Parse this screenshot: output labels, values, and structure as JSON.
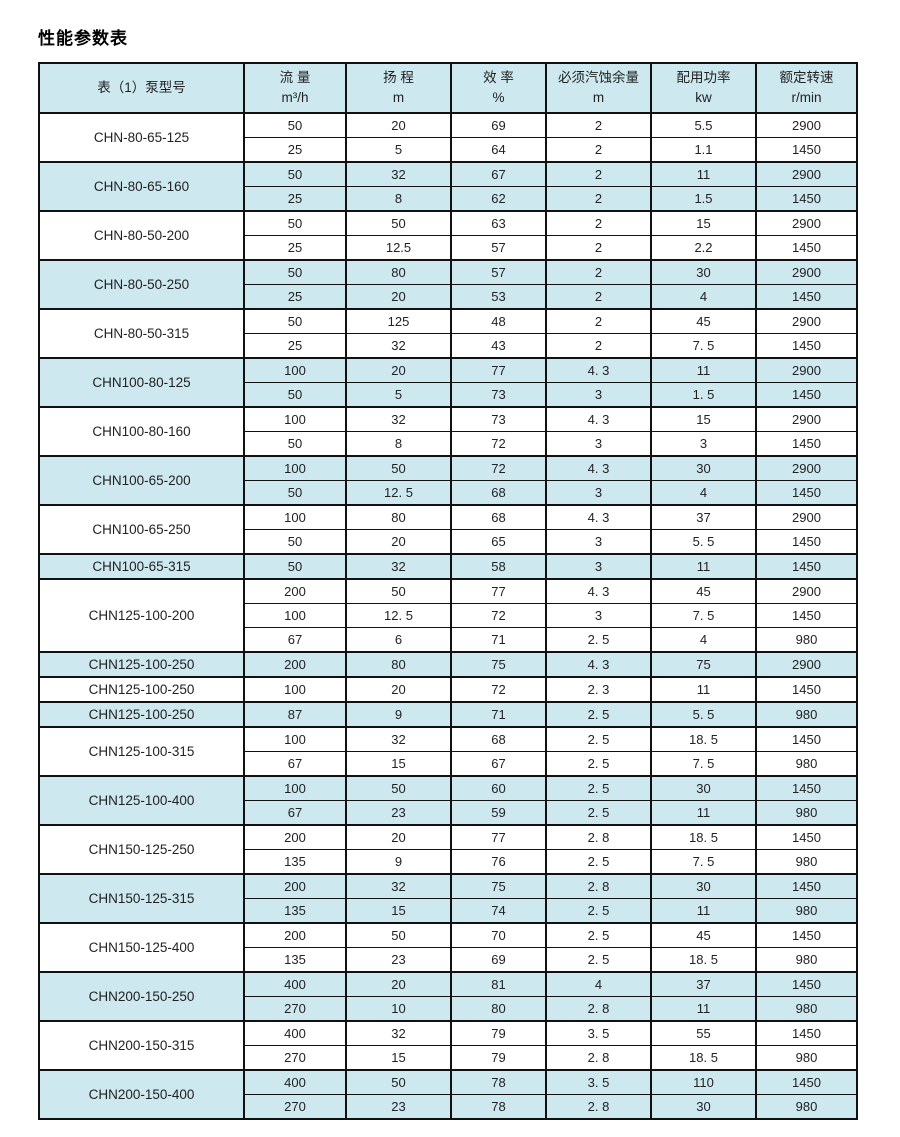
{
  "page": {
    "title": "性能参数表"
  },
  "colors": {
    "shaded_row_bg": "#cde8ef",
    "header_bg": "#cde8ef",
    "border": "#111111",
    "text": "#222222"
  },
  "table": {
    "headers": [
      {
        "line1": "表（1）泵型号",
        "line2": ""
      },
      {
        "line1": "流 量",
        "line2": "m³/h"
      },
      {
        "line1": "扬 程",
        "line2": "m"
      },
      {
        "line1": "效 率",
        "line2": "%"
      },
      {
        "line1": "必须汽蚀余量",
        "line2": "m"
      },
      {
        "line1": "配用功率",
        "line2": "kw"
      },
      {
        "line1": "额定转速",
        "line2": "r/min"
      }
    ],
    "groups": [
      {
        "model": "CHN-80-65-125",
        "shaded": false,
        "rows": [
          [
            "50",
            "20",
            "69",
            "2",
            "5.5",
            "2900"
          ],
          [
            "25",
            "5",
            "64",
            "2",
            "1.1",
            "1450"
          ]
        ]
      },
      {
        "model": "CHN-80-65-160",
        "shaded": true,
        "rows": [
          [
            "50",
            "32",
            "67",
            "2",
            "11",
            "2900"
          ],
          [
            "25",
            "8",
            "62",
            "2",
            "1.5",
            "1450"
          ]
        ]
      },
      {
        "model": "CHN-80-50-200",
        "shaded": false,
        "rows": [
          [
            "50",
            "50",
            "63",
            "2",
            "15",
            "2900"
          ],
          [
            "25",
            "12.5",
            "57",
            "2",
            "2.2",
            "1450"
          ]
        ]
      },
      {
        "model": "CHN-80-50-250",
        "shaded": true,
        "rows": [
          [
            "50",
            "80",
            "57",
            "2",
            "30",
            "2900"
          ],
          [
            "25",
            "20",
            "53",
            "2",
            "4",
            "1450"
          ]
        ]
      },
      {
        "model": "CHN-80-50-315",
        "shaded": false,
        "rows": [
          [
            "50",
            "125",
            "48",
            "2",
            "45",
            "2900"
          ],
          [
            "25",
            "32",
            "43",
            "2",
            "7. 5",
            "1450"
          ]
        ]
      },
      {
        "model": "CHN100-80-125",
        "shaded": true,
        "rows": [
          [
            "100",
            "20",
            "77",
            "4. 3",
            "11",
            "2900"
          ],
          [
            "50",
            "5",
            "73",
            "3",
            "1. 5",
            "1450"
          ]
        ]
      },
      {
        "model": "CHN100-80-160",
        "shaded": false,
        "rows": [
          [
            "100",
            "32",
            "73",
            "4. 3",
            "15",
            "2900"
          ],
          [
            "50",
            "8",
            "72",
            "3",
            "3",
            "1450"
          ]
        ]
      },
      {
        "model": "CHN100-65-200",
        "shaded": true,
        "rows": [
          [
            "100",
            "50",
            "72",
            "4. 3",
            "30",
            "2900"
          ],
          [
            "50",
            "12. 5",
            "68",
            "3",
            "4",
            "1450"
          ]
        ]
      },
      {
        "model": "CHN100-65-250",
        "shaded": false,
        "rows": [
          [
            "100",
            "80",
            "68",
            "4. 3",
            "37",
            "2900"
          ],
          [
            "50",
            "20",
            "65",
            "3",
            "5. 5",
            "1450"
          ]
        ]
      },
      {
        "model": "CHN100-65-315",
        "shaded": true,
        "rows": [
          [
            "50",
            "32",
            "58",
            "3",
            "11",
            "1450"
          ]
        ]
      },
      {
        "model": "CHN125-100-200",
        "shaded": false,
        "rows": [
          [
            "200",
            "50",
            "77",
            "4. 3",
            "45",
            "2900"
          ],
          [
            "100",
            "12. 5",
            "72",
            "3",
            "7. 5",
            "1450"
          ],
          [
            "67",
            "6",
            "71",
            "2. 5",
            "4",
            "980"
          ]
        ]
      },
      {
        "model": "CHN125-100-250",
        "shaded": true,
        "rows": [
          [
            "200",
            "80",
            "75",
            "4. 3",
            "75",
            "2900"
          ]
        ]
      },
      {
        "model": "CHN125-100-250",
        "shaded": false,
        "rows": [
          [
            "100",
            "20",
            "72",
            "2. 3",
            "11",
            "1450"
          ]
        ]
      },
      {
        "model": "CHN125-100-250",
        "shaded": true,
        "rows": [
          [
            "87",
            "9",
            "71",
            "2. 5",
            "5. 5",
            "980"
          ]
        ]
      },
      {
        "model": "CHN125-100-315",
        "shaded": false,
        "rows": [
          [
            "100",
            "32",
            "68",
            "2. 5",
            "18. 5",
            "1450"
          ],
          [
            "67",
            "15",
            "67",
            "2. 5",
            "7. 5",
            "980"
          ]
        ]
      },
      {
        "model": "CHN125-100-400",
        "shaded": true,
        "rows": [
          [
            "100",
            "50",
            "60",
            "2. 5",
            "30",
            "1450"
          ],
          [
            "67",
            "23",
            "59",
            "2. 5",
            "11",
            "980"
          ]
        ]
      },
      {
        "model": "CHN150-125-250",
        "shaded": false,
        "rows": [
          [
            "200",
            "20",
            "77",
            "2. 8",
            "18. 5",
            "1450"
          ],
          [
            "135",
            "9",
            "76",
            "2. 5",
            "7. 5",
            "980"
          ]
        ]
      },
      {
        "model": "CHN150-125-315",
        "shaded": true,
        "rows": [
          [
            "200",
            "32",
            "75",
            "2. 8",
            "30",
            "1450"
          ],
          [
            "135",
            "15",
            "74",
            "2. 5",
            "11",
            "980"
          ]
        ]
      },
      {
        "model": "CHN150-125-400",
        "shaded": false,
        "rows": [
          [
            "200",
            "50",
            "70",
            "2. 5",
            "45",
            "1450"
          ],
          [
            "135",
            "23",
            "69",
            "2. 5",
            "18. 5",
            "980"
          ]
        ]
      },
      {
        "model": "CHN200-150-250",
        "shaded": true,
        "rows": [
          [
            "400",
            "20",
            "81",
            "4",
            "37",
            "1450"
          ],
          [
            "270",
            "10",
            "80",
            "2. 8",
            "11",
            "980"
          ]
        ]
      },
      {
        "model": "CHN200-150-315",
        "shaded": false,
        "rows": [
          [
            "400",
            "32",
            "79",
            "3. 5",
            "55",
            "1450"
          ],
          [
            "270",
            "15",
            "79",
            "2. 8",
            "18. 5",
            "980"
          ]
        ]
      },
      {
        "model": "CHN200-150-400",
        "shaded": true,
        "rows": [
          [
            "400",
            "50",
            "78",
            "3. 5",
            "110",
            "1450"
          ],
          [
            "270",
            "23",
            "78",
            "2. 8",
            "30",
            "980"
          ]
        ]
      }
    ]
  }
}
